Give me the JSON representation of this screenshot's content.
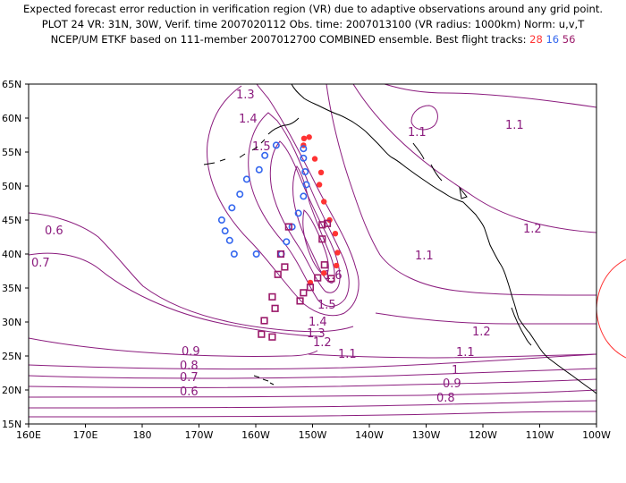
{
  "header": {
    "line1": "Expected forecast error reduction in verification region (VR) due to adaptive observations around any grid point.",
    "line2": "PLOT 24 VR: 31N, 30W, Verif. time 2007020112 Obs. time: 2007013100 (VR radius: 1000km) Norm: u,v,T",
    "line3_prefix": "NCEP/UM ETKF based on 111-member 2007012700 COMBINED ensemble.  Best flight tracks:",
    "track_red": "28",
    "track_blue": "16",
    "track_purple": "56"
  },
  "colors": {
    "contour": "#8b1c7e",
    "track_red": "#ff3333",
    "track_blue": "#3366ee",
    "track_purple": "#9b1a6a",
    "coast": "#000000",
    "grid": "#000000",
    "vr_circle": "#ff3333"
  },
  "axes": {
    "lat_labels": [
      "65N",
      "60N",
      "55N",
      "50N",
      "45N",
      "40N",
      "35N",
      "30N",
      "25N",
      "20N",
      "15N"
    ],
    "lon_labels": [
      "160E",
      "170E",
      "180",
      "170W",
      "160W",
      "150W",
      "140W",
      "130W",
      "120W",
      "110W",
      "100W"
    ]
  },
  "contour_labels": [
    "1.3",
    "1.4",
    "1.5",
    "0.6",
    "0.7",
    "1.1",
    "1.1",
    "1.2",
    "1.1",
    "1.6",
    "1.5",
    "1.4",
    "1.3",
    "1.2",
    "1.1",
    "1.2",
    "1.1",
    "0.9",
    "0.8",
    "0.7",
    "0.6",
    "1",
    "0.9",
    "0.8"
  ],
  "tracks": {
    "red": [
      [
        -150.6,
        57.2
      ],
      [
        -151.6,
        56.0
      ],
      [
        -149.6,
        54.0
      ],
      [
        -148.5,
        52.0
      ],
      [
        -148.8,
        50.2
      ],
      [
        -148.0,
        47.7
      ],
      [
        -147.0,
        45.0
      ],
      [
        -146.0,
        43.0
      ],
      [
        -145.6,
        40.2
      ],
      [
        -145.8,
        38.3
      ],
      [
        -148.0,
        37.2
      ],
      [
        -150.4,
        35.8
      ],
      [
        -151.5,
        57.0
      ]
    ],
    "blue": [
      [
        -151.6,
        55.5
      ],
      [
        -151.6,
        54.1
      ],
      [
        -151.3,
        52.1
      ],
      [
        -151.1,
        50.2
      ],
      [
        -151.6,
        48.5
      ],
      [
        -152.5,
        46.0
      ],
      [
        -153.6,
        44.0
      ],
      [
        -154.6,
        41.8
      ],
      [
        -155.5,
        40.0
      ],
      [
        -159.9,
        40.0
      ],
      [
        -163.8,
        40.0
      ],
      [
        -164.6,
        42.0
      ],
      [
        -165.4,
        43.4
      ],
      [
        -166.0,
        45.0
      ],
      [
        -164.2,
        46.8
      ],
      [
        -162.8,
        48.8
      ],
      [
        -161.6,
        51.0
      ],
      [
        -159.4,
        52.4
      ],
      [
        -158.4,
        54.5
      ],
      [
        -156.4,
        56.0
      ]
    ],
    "purple": [
      [
        -154.2,
        44.0
      ],
      [
        -148.3,
        44.3
      ],
      [
        -147.4,
        44.5
      ],
      [
        -148.3,
        42.2
      ],
      [
        -155.6,
        40.0
      ],
      [
        -154.9,
        38.1
      ],
      [
        -156.1,
        37.0
      ],
      [
        -146.7,
        36.4
      ],
      [
        -149.1,
        36.5
      ],
      [
        -150.4,
        35.1
      ],
      [
        -157.1,
        33.7
      ],
      [
        -152.2,
        33.1
      ],
      [
        -156.6,
        32.0
      ],
      [
        -158.5,
        30.2
      ],
      [
        -159.0,
        28.2
      ],
      [
        -157.1,
        27.8
      ],
      [
        -151.6,
        34.3
      ],
      [
        -147.9,
        38.4
      ]
    ]
  }
}
